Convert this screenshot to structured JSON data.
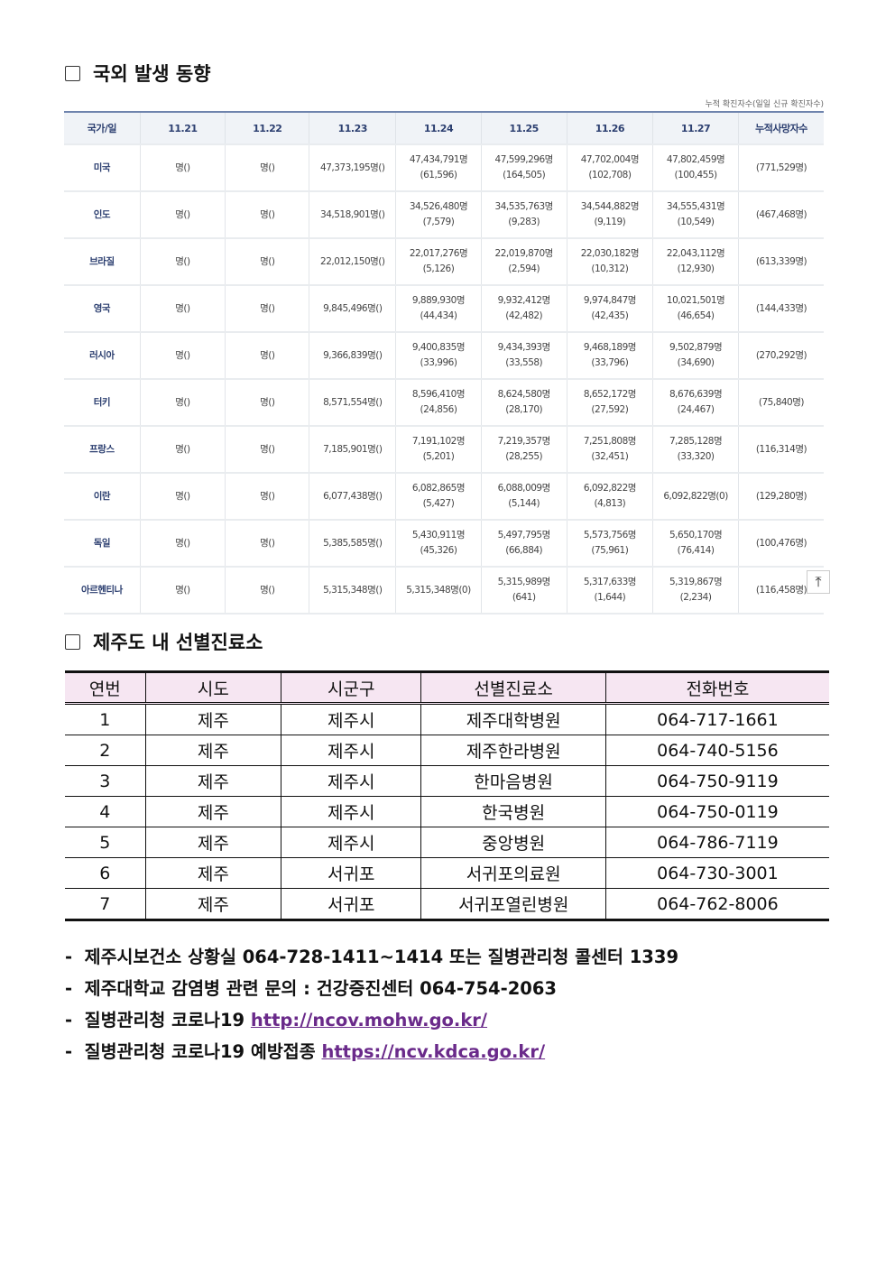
{
  "section1": {
    "title": "국외 발생 동향",
    "note": "누적 확진자수(일일 신규 확진자수)",
    "headers": [
      "국가/일",
      "11.21",
      "11.22",
      "11.23",
      "11.24",
      "11.25",
      "11.26",
      "11.27",
      "누적사망자수"
    ],
    "rows": [
      {
        "country": "미국",
        "cells": [
          [
            "명()",
            ""
          ],
          [
            "명()",
            ""
          ],
          [
            "47,373,195명()",
            ""
          ],
          [
            "47,434,791명",
            "(61,596)"
          ],
          [
            "47,599,296명",
            "(164,505)"
          ],
          [
            "47,702,004명",
            "(102,708)"
          ],
          [
            "47,802,459명",
            "(100,455)"
          ],
          [
            "(771,529명)",
            ""
          ]
        ]
      },
      {
        "country": "인도",
        "cells": [
          [
            "명()",
            ""
          ],
          [
            "명()",
            ""
          ],
          [
            "34,518,901명()",
            ""
          ],
          [
            "34,526,480명",
            "(7,579)"
          ],
          [
            "34,535,763명",
            "(9,283)"
          ],
          [
            "34,544,882명",
            "(9,119)"
          ],
          [
            "34,555,431명",
            "(10,549)"
          ],
          [
            "(467,468명)",
            ""
          ]
        ]
      },
      {
        "country": "브라질",
        "cells": [
          [
            "명()",
            ""
          ],
          [
            "명()",
            ""
          ],
          [
            "22,012,150명()",
            ""
          ],
          [
            "22,017,276명",
            "(5,126)"
          ],
          [
            "22,019,870명",
            "(2,594)"
          ],
          [
            "22,030,182명",
            "(10,312)"
          ],
          [
            "22,043,112명",
            "(12,930)"
          ],
          [
            "(613,339명)",
            ""
          ]
        ]
      },
      {
        "country": "영국",
        "cells": [
          [
            "명()",
            ""
          ],
          [
            "명()",
            ""
          ],
          [
            "9,845,496명()",
            ""
          ],
          [
            "9,889,930명",
            "(44,434)"
          ],
          [
            "9,932,412명",
            "(42,482)"
          ],
          [
            "9,974,847명",
            "(42,435)"
          ],
          [
            "10,021,501명",
            "(46,654)"
          ],
          [
            "(144,433명)",
            ""
          ]
        ]
      },
      {
        "country": "러시아",
        "cells": [
          [
            "명()",
            ""
          ],
          [
            "명()",
            ""
          ],
          [
            "9,366,839명()",
            ""
          ],
          [
            "9,400,835명",
            "(33,996)"
          ],
          [
            "9,434,393명",
            "(33,558)"
          ],
          [
            "9,468,189명",
            "(33,796)"
          ],
          [
            "9,502,879명",
            "(34,690)"
          ],
          [
            "(270,292명)",
            ""
          ]
        ]
      },
      {
        "country": "터키",
        "cells": [
          [
            "명()",
            ""
          ],
          [
            "명()",
            ""
          ],
          [
            "8,571,554명()",
            ""
          ],
          [
            "8,596,410명",
            "(24,856)"
          ],
          [
            "8,624,580명",
            "(28,170)"
          ],
          [
            "8,652,172명",
            "(27,592)"
          ],
          [
            "8,676,639명",
            "(24,467)"
          ],
          [
            "(75,840명)",
            ""
          ]
        ]
      },
      {
        "country": "프랑스",
        "cells": [
          [
            "명()",
            ""
          ],
          [
            "명()",
            ""
          ],
          [
            "7,185,901명()",
            ""
          ],
          [
            "7,191,102명",
            "(5,201)"
          ],
          [
            "7,219,357명",
            "(28,255)"
          ],
          [
            "7,251,808명",
            "(32,451)"
          ],
          [
            "7,285,128명",
            "(33,320)"
          ],
          [
            "(116,314명)",
            ""
          ]
        ]
      },
      {
        "country": "이란",
        "cells": [
          [
            "명()",
            ""
          ],
          [
            "명()",
            ""
          ],
          [
            "6,077,438명()",
            ""
          ],
          [
            "6,082,865명",
            "(5,427)"
          ],
          [
            "6,088,009명",
            "(5,144)"
          ],
          [
            "6,092,822명",
            "(4,813)"
          ],
          [
            "6,092,822명(0)",
            ""
          ],
          [
            "(129,280명)",
            ""
          ]
        ]
      },
      {
        "country": "독일",
        "cells": [
          [
            "명()",
            ""
          ],
          [
            "명()",
            ""
          ],
          [
            "5,385,585명()",
            ""
          ],
          [
            "5,430,911명",
            "(45,326)"
          ],
          [
            "5,497,795명",
            "(66,884)"
          ],
          [
            "5,573,756명",
            "(75,961)"
          ],
          [
            "5,650,170명",
            "(76,414)"
          ],
          [
            "(100,476명)",
            ""
          ]
        ]
      },
      {
        "country": "아르헨티나",
        "cells": [
          [
            "명()",
            ""
          ],
          [
            "명()",
            ""
          ],
          [
            "5,315,348명()",
            ""
          ],
          [
            "5,315,348명(0)",
            ""
          ],
          [
            "5,315,989명",
            "(641)"
          ],
          [
            "5,317,633명",
            "(1,644)"
          ],
          [
            "5,319,867명",
            "(2,234)"
          ],
          [
            "(116,458명)",
            ""
          ]
        ]
      }
    ],
    "scroll_top_icon": "arrow-up-to-top"
  },
  "section2": {
    "title": "제주도 내 선별진료소",
    "headers": [
      "연번",
      "시도",
      "시군구",
      "선별진료소",
      "전화번호"
    ],
    "rows": [
      [
        "1",
        "제주",
        "제주시",
        "제주대학병원",
        "064-717-1661"
      ],
      [
        "2",
        "제주",
        "제주시",
        "제주한라병원",
        "064-740-5156"
      ],
      [
        "3",
        "제주",
        "제주시",
        "한마음병원",
        "064-750-9119"
      ],
      [
        "4",
        "제주",
        "제주시",
        "한국병원",
        "064-750-0119"
      ],
      [
        "5",
        "제주",
        "제주시",
        "중앙병원",
        "064-786-7119"
      ],
      [
        "6",
        "제주",
        "서귀포",
        "서귀포의료원",
        "064-730-3001"
      ],
      [
        "7",
        "제주",
        "서귀포",
        "서귀포열린병원",
        "064-762-8006"
      ]
    ]
  },
  "footer": [
    {
      "text": "-  제주시보건소 상황실 064-728-1411~1414 또는 질병관리청 콜센터 1339",
      "link": ""
    },
    {
      "text": "-  제주대학교 감염병 관련 문의 : 건강증진센터 064-754-2063",
      "link": ""
    },
    {
      "text": "-  질병관리청 코로나19 ",
      "link": "http://ncov.mohw.go.kr/"
    },
    {
      "text": "-  질병관리청 코로나19 예방접종 ",
      "link": "https://ncv.kdca.go.kr/"
    }
  ]
}
